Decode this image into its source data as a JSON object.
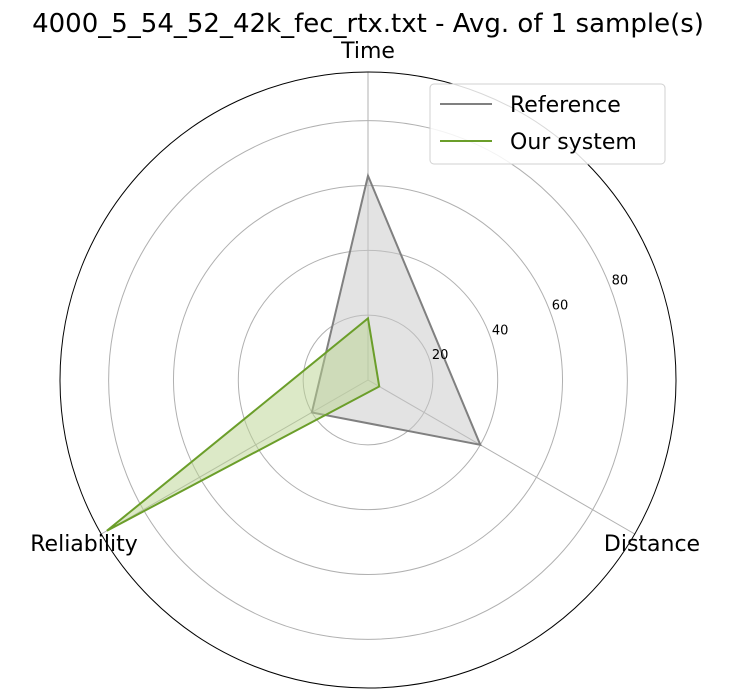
{
  "chart_data": {
    "type": "radar",
    "title": "4000_5_54_52_42k_fec_rtx.txt - Avg. of 1 sample(s)",
    "axes": [
      "Time",
      "Distance",
      "Reliability"
    ],
    "r_ticks": [
      20,
      40,
      60,
      80
    ],
    "r_max": 95,
    "grid": true,
    "legend_position": "top-right",
    "series": [
      {
        "name": "Reference",
        "values": [
          63,
          40,
          20
        ],
        "color": "#808080",
        "fill": "#c8c8c8"
      },
      {
        "name": "Our system",
        "values": [
          19,
          4,
          93
        ],
        "color": "#6b9e2a",
        "fill": "#b9d48f"
      }
    ]
  }
}
